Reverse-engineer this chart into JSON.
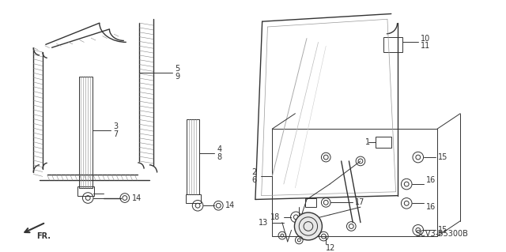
{
  "bg_color": "#ffffff",
  "diagram_code": "SCV3-B5300B",
  "line_color": "#333333",
  "font_size": 7,
  "hatch_color": "#888888"
}
